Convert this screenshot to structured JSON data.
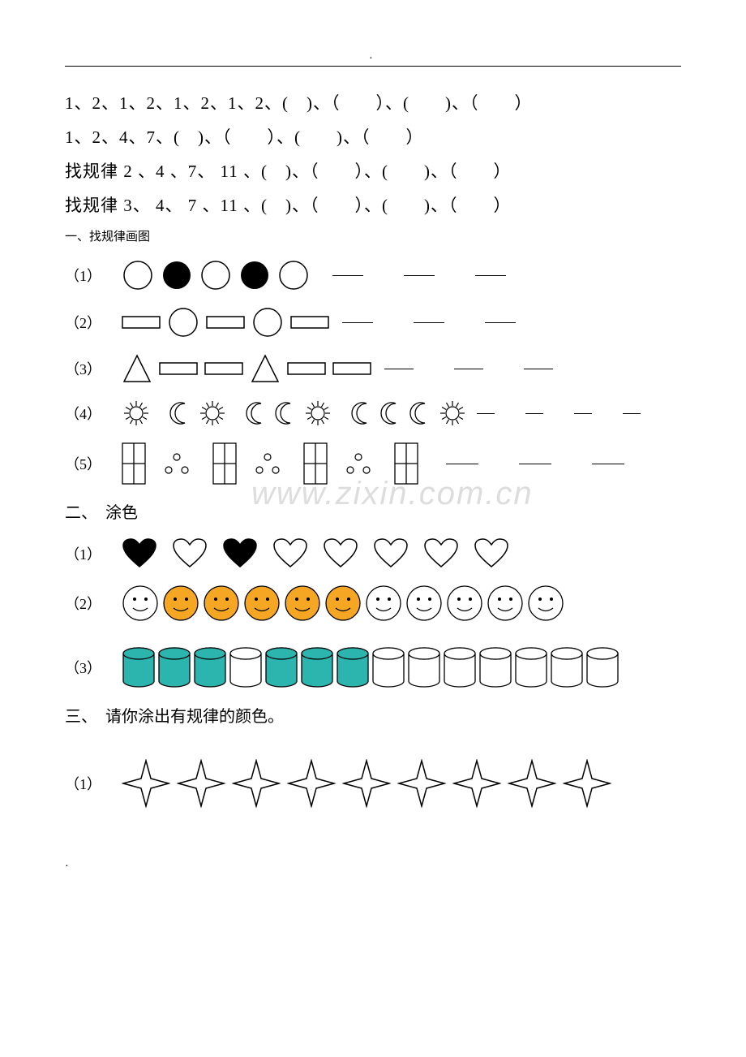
{
  "dot": "．",
  "sequences": [
    "1、2、1、2、1、2、1、2、(　)、（　　）、(　　)、（　　）",
    "1、2、4、7、(　)、（　　）、(　　)、（　　）",
    "找规律 2 、4 、7、 11 、(　)、（　　）、(　　)、（　　）",
    "找规律 3、  4、  7 、11 、(　)、（　　）、(　　)、（　　）"
  ],
  "section1_title": "一、找规律画图",
  "section2_title": "二、　涂色",
  "section3_title": "三、　请你涂出有规律的颜色。",
  "labels": {
    "p1": "（1）",
    "p2": "（2）",
    "p3": "（3）",
    "p4": "（4）",
    "p5": "（5）"
  },
  "watermark": "www.zixin.com.cn",
  "colors": {
    "black": "#000000",
    "white": "#ffffff",
    "orange": "#f5a623",
    "teal": "#2bb5ae",
    "gray": "#cccccc"
  },
  "pattern1_1": {
    "shapes": [
      "circle-outline",
      "circle-filled",
      "circle-outline",
      "circle-filled",
      "circle-outline"
    ],
    "blanks": 3
  },
  "pattern1_2": {
    "shapes": [
      "rect-outline",
      "circle-outline",
      "rect-outline",
      "circle-outline",
      "rect-outline"
    ],
    "blanks": 3
  },
  "pattern1_3": {
    "shapes": [
      "triangle",
      "rect-outline",
      "rect-outline",
      "triangle",
      "rect-outline",
      "rect-outline"
    ],
    "blanks": 3
  },
  "pattern1_4": {
    "groups": [
      [
        "sun"
      ],
      [
        "moon",
        "sun"
      ],
      [
        "moon",
        "moon",
        "sun"
      ],
      [
        "moon",
        "moon",
        "moon",
        "sun"
      ]
    ],
    "blanks": 4
  },
  "pattern1_5": {
    "groups": [
      [
        "grid2",
        "dots3"
      ],
      [
        "grid2",
        "dots3"
      ],
      [
        "grid2",
        "dots3"
      ],
      [
        "grid2"
      ]
    ],
    "blanks": 3
  },
  "pattern2_1": {
    "hearts": [
      "filled",
      "outline",
      "filled",
      "outline",
      "outline",
      "outline",
      "outline",
      "outline"
    ]
  },
  "pattern2_2": {
    "faces": [
      "outline",
      "orange",
      "orange",
      "orange",
      "orange",
      "orange",
      "outline",
      "outline",
      "outline",
      "outline",
      "outline"
    ]
  },
  "pattern2_3": {
    "cylinders": [
      "teal",
      "teal",
      "teal",
      "outline",
      "teal",
      "teal",
      "teal",
      "outline",
      "outline",
      "outline",
      "outline",
      "outline",
      "outline",
      "outline"
    ]
  },
  "pattern3_1": {
    "stars": 9
  }
}
